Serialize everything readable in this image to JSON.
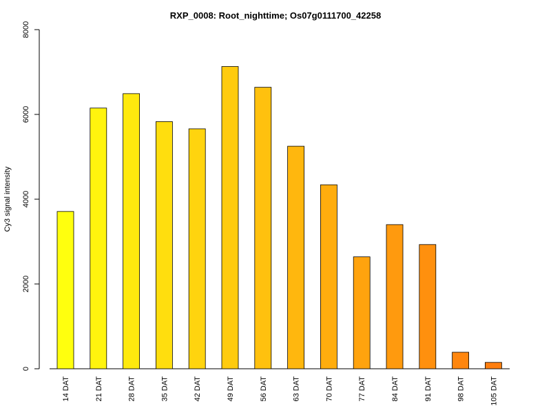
{
  "chart_data": {
    "type": "bar",
    "title": "RXP_0008: Root_nighttime; Os07g0111700_42258",
    "xlabel": "",
    "ylabel": "Cy3 signal intensity",
    "ylim": [
      0,
      8000
    ],
    "yticks": [
      0,
      2000,
      4000,
      6000,
      8000
    ],
    "grid": false,
    "categories": [
      "14 DAT",
      "21 DAT",
      "28 DAT",
      "35 DAT",
      "42 DAT",
      "49 DAT",
      "56 DAT",
      "63 DAT",
      "70 DAT",
      "77 DAT",
      "84 DAT",
      "91 DAT",
      "98 DAT",
      "105 DAT"
    ],
    "values": [
      3710,
      6150,
      6490,
      5830,
      5660,
      7130,
      6640,
      5250,
      4340,
      2640,
      3400,
      2930,
      390,
      150
    ],
    "colors": [
      "#ffff0e",
      "#fff40e",
      "#ffe90e",
      "#ffde0e",
      "#ffd40e",
      "#ffcb0e",
      "#ffc10e",
      "#ffb70e",
      "#ffad0e",
      "#ffa30e",
      "#ff9a0e",
      "#ff900e",
      "#ff860e",
      "#ff7e0e"
    ]
  }
}
